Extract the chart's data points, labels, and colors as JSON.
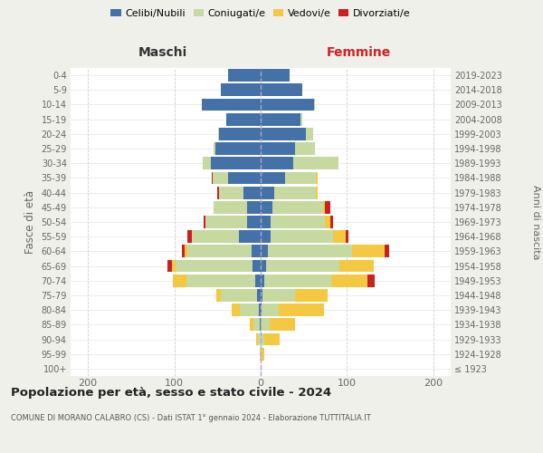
{
  "age_groups": [
    "100+",
    "95-99",
    "90-94",
    "85-89",
    "80-84",
    "75-79",
    "70-74",
    "65-69",
    "60-64",
    "55-59",
    "50-54",
    "45-49",
    "40-44",
    "35-39",
    "30-34",
    "25-29",
    "20-24",
    "15-19",
    "10-14",
    "5-9",
    "0-4"
  ],
  "birth_years": [
    "≤ 1923",
    "1924-1928",
    "1929-1933",
    "1934-1938",
    "1939-1943",
    "1944-1948",
    "1949-1953",
    "1954-1958",
    "1959-1963",
    "1964-1968",
    "1969-1973",
    "1974-1978",
    "1979-1983",
    "1984-1988",
    "1989-1993",
    "1994-1998",
    "1999-2003",
    "2004-2008",
    "2009-2013",
    "2014-2018",
    "2019-2023"
  ],
  "maschi": {
    "celibi": [
      0,
      0,
      0,
      1,
      2,
      4,
      6,
      9,
      10,
      25,
      16,
      16,
      20,
      38,
      58,
      52,
      48,
      40,
      68,
      46,
      38
    ],
    "coniugati": [
      0,
      1,
      3,
      7,
      22,
      42,
      80,
      90,
      75,
      55,
      48,
      38,
      28,
      18,
      9,
      3,
      1,
      0,
      0,
      0,
      0
    ],
    "vedovi": [
      0,
      0,
      2,
      5,
      10,
      5,
      16,
      4,
      3,
      0,
      0,
      0,
      0,
      0,
      0,
      0,
      0,
      0,
      0,
      0,
      0
    ],
    "divorziati": [
      0,
      0,
      0,
      0,
      0,
      0,
      0,
      5,
      3,
      5,
      2,
      0,
      2,
      1,
      0,
      0,
      0,
      0,
      0,
      0,
      0
    ]
  },
  "femmine": {
    "nubili": [
      0,
      0,
      0,
      0,
      1,
      2,
      4,
      6,
      8,
      12,
      12,
      14,
      16,
      28,
      38,
      40,
      52,
      46,
      62,
      48,
      33
    ],
    "coniugate": [
      0,
      1,
      4,
      10,
      20,
      38,
      78,
      85,
      98,
      72,
      62,
      58,
      48,
      36,
      52,
      23,
      9,
      2,
      1,
      0,
      0
    ],
    "vedove": [
      0,
      3,
      18,
      30,
      52,
      38,
      42,
      40,
      38,
      14,
      7,
      2,
      2,
      2,
      0,
      0,
      0,
      0,
      0,
      0,
      0
    ],
    "divorziate": [
      0,
      0,
      0,
      0,
      0,
      0,
      8,
      0,
      5,
      4,
      3,
      7,
      0,
      0,
      0,
      0,
      0,
      0,
      0,
      0,
      0
    ]
  },
  "colors": {
    "celibi_nubili": "#4472a8",
    "coniugati": "#c5d9a0",
    "vedovi": "#f5c842",
    "divorziati": "#cc2020"
  },
  "xlim": 220,
  "title": "Popolazione per età, sesso e stato civile - 2024",
  "subtitle": "COMUNE DI MORANO CALABRO (CS) - Dati ISTAT 1° gennaio 2024 - Elaborazione TUTTITALIA.IT",
  "ylabel_left": "Fasce di età",
  "ylabel_right": "Anni di nascita",
  "xlabel_left": "Maschi",
  "xlabel_right": "Femmine",
  "bg_color": "#f0f0eb",
  "plot_bg": "#ffffff"
}
